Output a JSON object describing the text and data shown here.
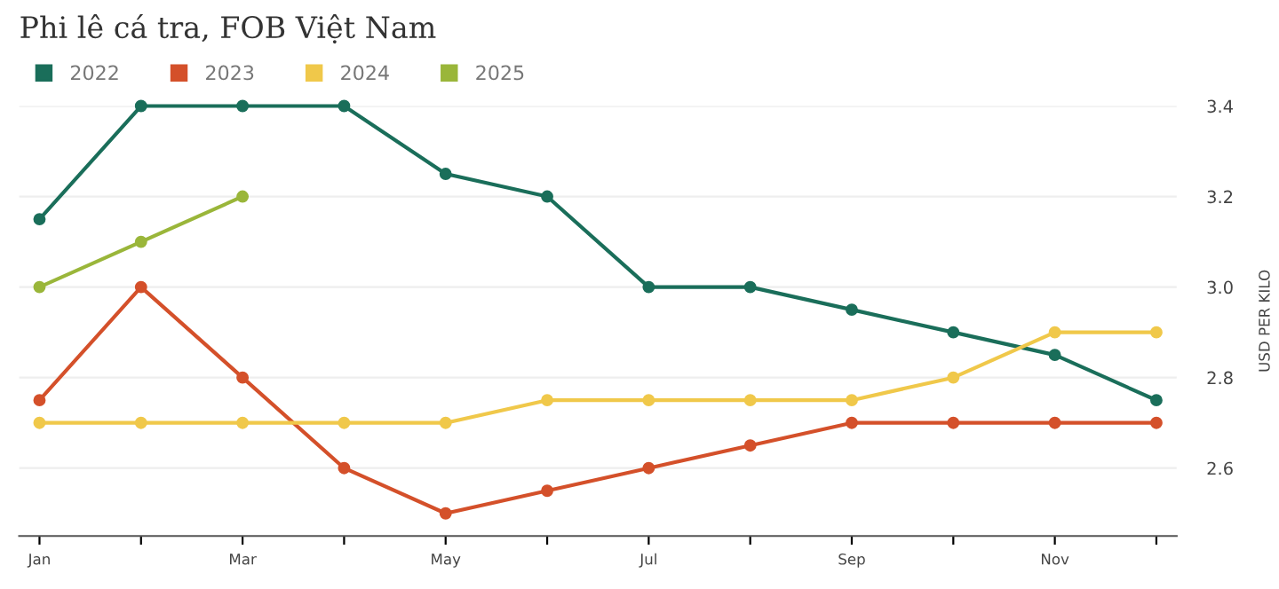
{
  "chart_data": {
    "type": "line",
    "title": "Phi lê cá tra, FOB Việt Nam",
    "ylabel": "USD PER KILO",
    "categories": [
      "Jan",
      null,
      "Mar",
      null,
      "May",
      null,
      "Jul",
      null,
      "Sep",
      null,
      "Nov",
      null
    ],
    "series": [
      {
        "name": "2022",
        "color": "#1a6e5a",
        "values": [
          3.15,
          3.4,
          3.4,
          3.4,
          3.25,
          3.2,
          3.0,
          3.0,
          2.95,
          2.9,
          2.85,
          2.75
        ]
      },
      {
        "name": "2023",
        "color": "#d4502a",
        "values": [
          2.75,
          3.0,
          2.8,
          2.6,
          2.5,
          2.55,
          2.6,
          2.65,
          2.7,
          2.7,
          2.7,
          2.7
        ]
      },
      {
        "name": "2024",
        "color": "#f0c84a",
        "values": [
          2.7,
          2.7,
          2.7,
          2.7,
          2.7,
          2.75,
          2.75,
          2.75,
          2.75,
          2.8,
          2.9,
          2.9
        ]
      },
      {
        "name": "2025",
        "color": "#9ab63a",
        "values": [
          3.0,
          3.1,
          3.2,
          null,
          null,
          null,
          null,
          null,
          null,
          null,
          null,
          null
        ]
      }
    ],
    "ylim": [
      2.45,
      3.4
    ],
    "yticks": [
      {
        "value": 2.6,
        "label": "2.6"
      },
      {
        "value": 2.8,
        "label": "2.8"
      },
      {
        "value": 3.0,
        "label": "3.0"
      },
      {
        "value": 3.2,
        "label": "3.2"
      },
      {
        "value": 3.4,
        "label": "3.4"
      }
    ],
    "grid": "y",
    "legend": "top left",
    "marker": "circle",
    "line_style": "solid"
  }
}
